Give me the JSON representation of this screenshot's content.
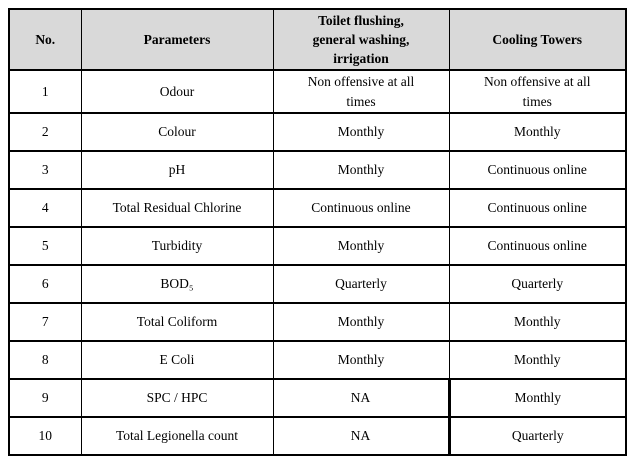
{
  "table": {
    "columns": [
      {
        "label": "No."
      },
      {
        "label": "Parameters"
      },
      {
        "label": "Toilet flushing,\ngeneral washing,\nirrigation"
      },
      {
        "label": "Cooling Towers"
      }
    ],
    "rows": [
      {
        "no": "1",
        "parameter": "Odour",
        "toilet": "Non offensive at all\ntimes",
        "cooling": "Non offensive at all\ntimes"
      },
      {
        "no": "2",
        "parameter": "Colour",
        "toilet": "Monthly",
        "cooling": "Monthly"
      },
      {
        "no": "3",
        "parameter": "pH",
        "toilet": "Monthly",
        "cooling": "Continuous online"
      },
      {
        "no": "4",
        "parameter": "Total Residual Chlorine",
        "toilet": "Continuous online",
        "cooling": "Continuous online"
      },
      {
        "no": "5",
        "parameter": "Turbidity",
        "toilet": "Monthly",
        "cooling": "Continuous online"
      },
      {
        "no": "6",
        "parameter": "BOD₅",
        "toilet": "Quarterly",
        "cooling": "Quarterly"
      },
      {
        "no": "7",
        "parameter": "Total Coliform",
        "toilet": "Monthly",
        "cooling": "Monthly"
      },
      {
        "no": "8",
        "parameter": "E Coli",
        "toilet": "Monthly",
        "cooling": "Monthly"
      },
      {
        "no": "9",
        "parameter": "SPC / HPC",
        "toilet": "NA",
        "cooling": "Monthly"
      },
      {
        "no": "10",
        "parameter": "Total Legionella count",
        "toilet": "NA",
        "cooling": "Quarterly"
      }
    ]
  }
}
